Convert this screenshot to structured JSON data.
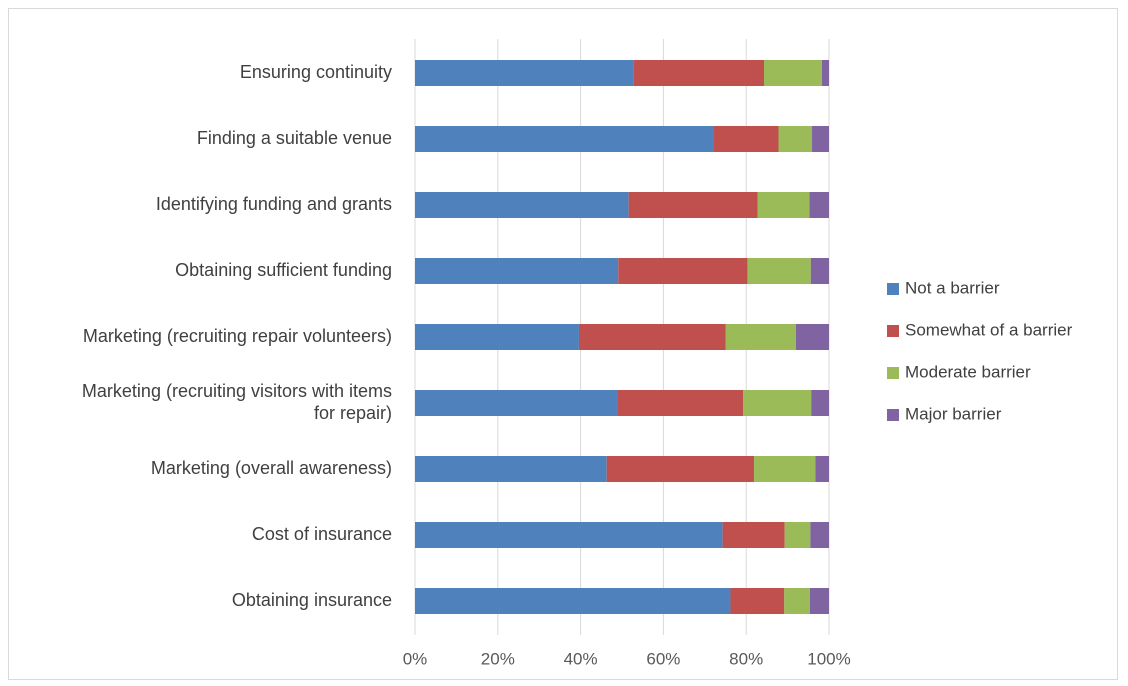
{
  "chart_data": {
    "type": "bar",
    "orientation": "horizontal",
    "stacked": "percent",
    "categories": [
      "Ensuring continuity",
      "Finding a suitable venue",
      "Identifying funding and grants",
      "Obtaining sufficient funding",
      "Marketing (recruiting repair volunteers)",
      "Marketing (recruiting visitors with items for repair)",
      "Marketing (overall awareness)",
      "Cost of insurance",
      "Obtaining insurance"
    ],
    "category_lines": [
      [
        "Ensuring continuity"
      ],
      [
        "Finding a suitable venue"
      ],
      [
        "Identifying funding and grants"
      ],
      [
        "Obtaining sufficient funding"
      ],
      [
        "Marketing (recruiting repair volunteers)"
      ],
      [
        "Marketing (recruiting visitors with items",
        "for repair)"
      ],
      [
        "Marketing (overall awareness)"
      ],
      [
        "Cost of insurance"
      ],
      [
        "Obtaining insurance"
      ]
    ],
    "series": [
      {
        "name": "Not a barrier",
        "color": "#4F81BD",
        "values": [
          52.7,
          72.0,
          51.6,
          49.1,
          39.6,
          48.9,
          46.3,
          74.3,
          76.2
        ]
      },
      {
        "name": "Somewhat of a barrier",
        "color": "#C0504D",
        "values": [
          31.6,
          15.8,
          31.2,
          31.2,
          35.4,
          30.4,
          35.6,
          15.0,
          13.0
        ]
      },
      {
        "name": "Moderate barrier",
        "color": "#9BBB59",
        "values": [
          14.0,
          8.1,
          12.5,
          15.3,
          17.0,
          16.4,
          14.8,
          6.2,
          6.2
        ]
      },
      {
        "name": "Major barrier",
        "color": "#8064A2",
        "values": [
          1.7,
          4.1,
          4.7,
          4.4,
          8.0,
          4.3,
          3.3,
          4.5,
          4.6
        ]
      }
    ],
    "xlim": [
      0,
      100
    ],
    "x_ticks": [
      0,
      20,
      40,
      60,
      80,
      100
    ],
    "x_tick_labels": [
      "0%",
      "20%",
      "40%",
      "60%",
      "80%",
      "100%"
    ],
    "title": "",
    "xlabel": "",
    "ylabel": "",
    "grid": "vertical",
    "legend": "right"
  }
}
